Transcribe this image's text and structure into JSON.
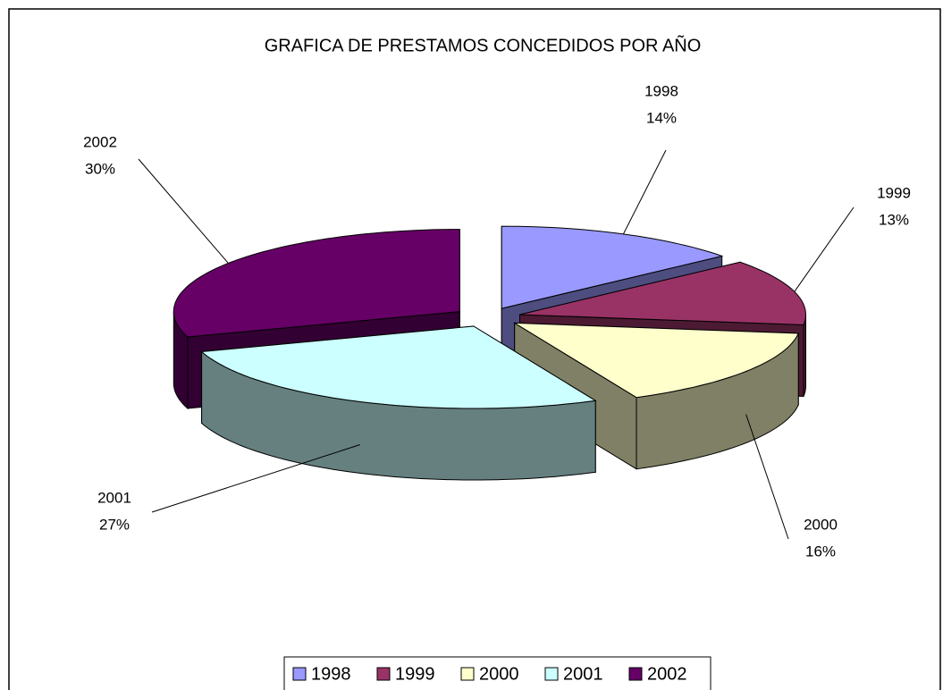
{
  "chart_data": {
    "type": "pie",
    "title": "GRAFICA DE PRESTAMOS CONCEDIDOS POR AÑO",
    "categories": [
      "1998",
      "1999",
      "2000",
      "2001",
      "2002"
    ],
    "values": [
      14,
      13,
      16,
      27,
      30
    ],
    "value_labels": [
      "14%",
      "13%",
      "16%",
      "27%",
      "30%"
    ],
    "colors": [
      "#9999ff",
      "#993366",
      "#ffffcc",
      "#ccffff",
      "#660066"
    ],
    "legend": "bottom"
  }
}
